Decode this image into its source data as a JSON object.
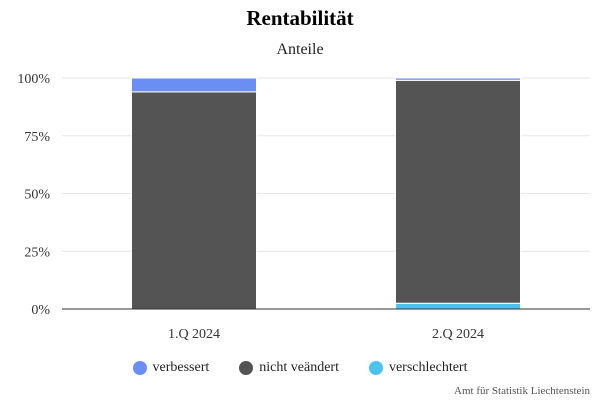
{
  "chart_data": {
    "type": "bar",
    "stacked": true,
    "title": "Rentabilität",
    "subtitle": "Anteile",
    "categories": [
      "1.Q 2024",
      "2.Q 2024"
    ],
    "series": [
      {
        "name": "verschlechtert",
        "color": "#4cc3ee",
        "values": [
          0,
          2.5
        ]
      },
      {
        "name": "nicht veändert",
        "color": "#545454",
        "values": [
          94,
          96.5
        ]
      },
      {
        "name": "verbessert",
        "color": "#6b8ef5",
        "values": [
          6,
          1
        ]
      }
    ],
    "ylim": [
      0,
      100
    ],
    "yticks": [
      0,
      25,
      50,
      75,
      100
    ],
    "ytick_labels": [
      "0%",
      "25%",
      "50%",
      "75%",
      "100%"
    ],
    "grid": true,
    "legend": {
      "position": "bottom",
      "order": [
        "verbessert",
        "nicht veändert",
        "verschlechtert"
      ]
    },
    "credit": "Amt für Statistik Liechtenstein"
  }
}
